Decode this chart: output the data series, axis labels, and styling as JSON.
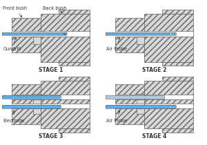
{
  "bg_color": "#ffffff",
  "line_color": "#606060",
  "blue_color": "#5aadea",
  "dark_line": "#333333",
  "hatch_fc": "#d8d8d8",
  "stages": [
    "STAGE 1",
    "STAGE 2",
    "STAGE 3",
    "STAGE 4"
  ],
  "font_size_label": 4.8,
  "font_size_stage": 5.5
}
